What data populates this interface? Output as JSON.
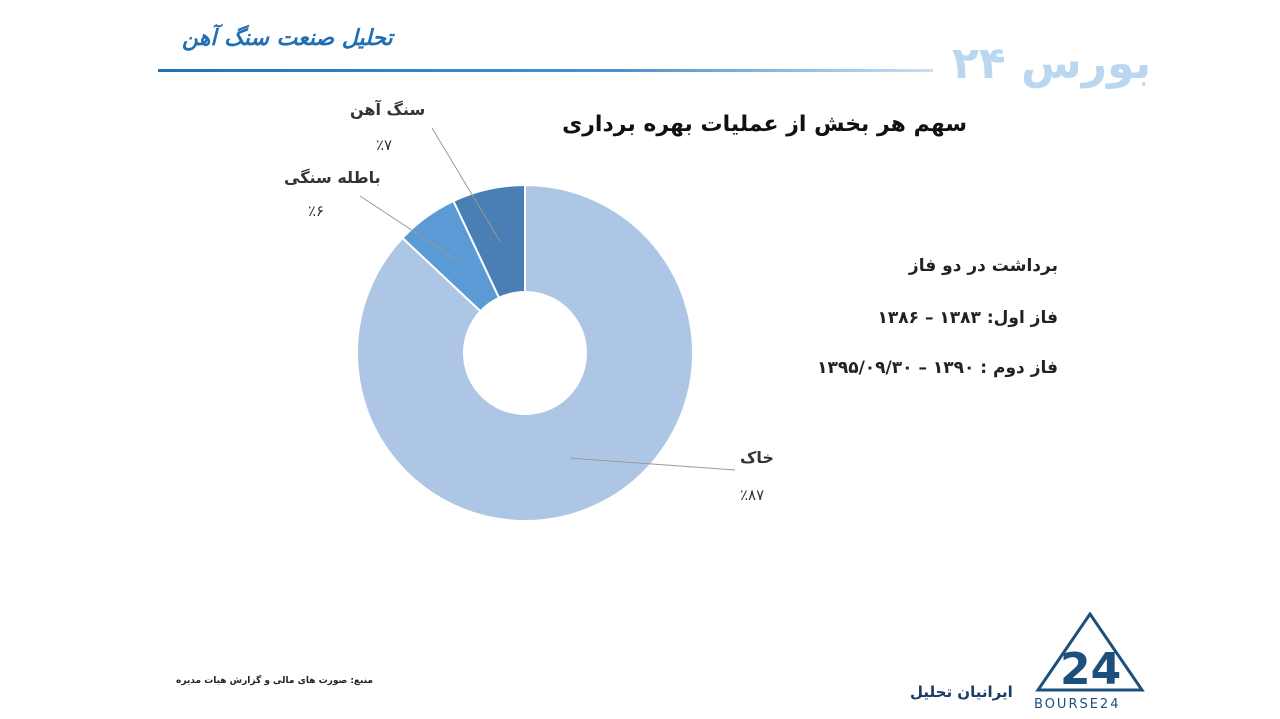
{
  "header": {
    "title": "تحلیل صنعت سنگ آهن",
    "brand": "بورس ۲۴"
  },
  "chart_data": {
    "type": "pie",
    "title": "سهم هر بخش از عملیات بهره برداری",
    "categories": [
      "خاک",
      "باطله سنگی",
      "سنگ آهن"
    ],
    "values": [
      87,
      6,
      7
    ],
    "value_labels": [
      "٪۸۷",
      "٪۶",
      "٪۷"
    ],
    "colors": [
      "#aec6e6",
      "#5b9bd5",
      "#4a7fb5"
    ],
    "donut": true
  },
  "info": {
    "heading": "برداشت در دو فاز",
    "phase1": "فاز اول: ۱۳۸۳ – ۱۳۸۶",
    "phase2": "فاز دوم : ۱۳۹۰ – ۱۳۹۵/۰۹/۳۰"
  },
  "footer": {
    "source": "منبع: صورت های مالی و گزارش هیات مدیره",
    "brand": "ایرانیان تحلیل",
    "logo_text": "BOURSE24"
  }
}
